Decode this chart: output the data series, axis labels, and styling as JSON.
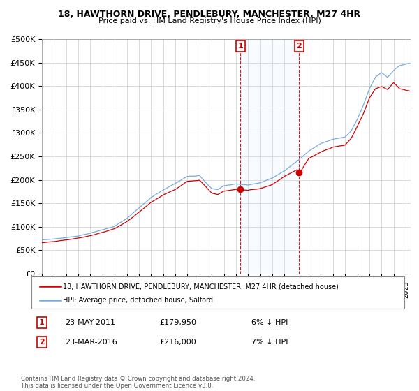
{
  "title1": "18, HAWTHORN DRIVE, PENDLEBURY, MANCHESTER, M27 4HR",
  "title2": "Price paid vs. HM Land Registry's House Price Index (HPI)",
  "ylabel_ticks": [
    "£0",
    "£50K",
    "£100K",
    "£150K",
    "£200K",
    "£250K",
    "£300K",
    "£350K",
    "£400K",
    "£450K",
    "£500K"
  ],
  "ytick_vals": [
    0,
    50000,
    100000,
    150000,
    200000,
    250000,
    300000,
    350000,
    400000,
    450000,
    500000
  ],
  "xlim_start": 1995.0,
  "xlim_end": 2025.4,
  "ylim": [
    0,
    500000
  ],
  "legend_line1": "18, HAWTHORN DRIVE, PENDLEBURY, MANCHESTER, M27 4HR (detached house)",
  "legend_line2": "HPI: Average price, detached house, Salford",
  "marker1_x": 2011.38,
  "marker1_y": 179950,
  "marker2_x": 2016.21,
  "marker2_y": 216000,
  "label1": "1",
  "label2": "2",
  "sale1_date": "23-MAY-2011",
  "sale1_price": "£179,950",
  "sale1_note": "6% ↓ HPI",
  "sale2_date": "23-MAR-2016",
  "sale2_price": "£216,000",
  "sale2_note": "7% ↓ HPI",
  "footnote": "Contains HM Land Registry data © Crown copyright and database right 2024.\nThis data is licensed under the Open Government Licence v3.0.",
  "color_red": "#cc0000",
  "color_blue": "#7aabda",
  "color_lightblue_bg": "#ddeeff",
  "background_color": "#ffffff",
  "grid_color": "#cccccc"
}
